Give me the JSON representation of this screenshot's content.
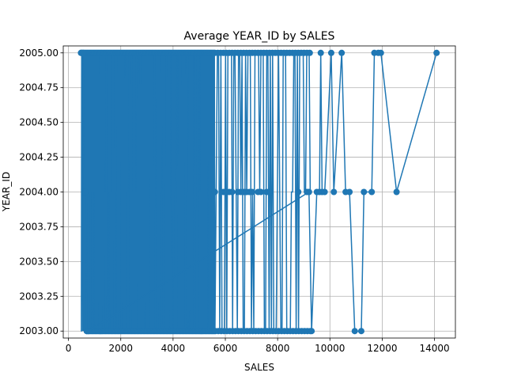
{
  "chart_data": {
    "type": "line",
    "title": "Average YEAR_ID by SALES",
    "xlabel": "SALES",
    "ylabel": "YEAR_ID",
    "xlim": [
      -200,
      14800
    ],
    "ylim": [
      2002.95,
      2005.05
    ],
    "xticks": [
      0,
      2000,
      4000,
      6000,
      8000,
      10000,
      12000,
      14000
    ],
    "xtick_labels": [
      "0",
      "2000",
      "4000",
      "6000",
      "8000",
      "10000",
      "12000",
      "14000"
    ],
    "yticks": [
      2003.0,
      2003.25,
      2003.5,
      2003.75,
      2004.0,
      2004.25,
      2004.5,
      2004.75,
      2005.0
    ],
    "ytick_labels": [
      "2003.00",
      "2003.25",
      "2003.50",
      "2003.75",
      "2004.00",
      "2004.25",
      "2004.50",
      "2004.75",
      "2005.00"
    ],
    "grid": true,
    "marker": "circle",
    "series": [
      {
        "color": "#1f77b4",
        "dense_region": {
          "x_start": 480,
          "x_end": 9300
        },
        "points": [
          [
            482,
            2005.0
          ],
          [
            560,
            2005.0
          ],
          [
            600,
            2004.0
          ],
          [
            640,
            2004.0
          ],
          [
            700,
            2003.0
          ],
          [
            760,
            2003.0
          ],
          [
            9200,
            2004.0
          ],
          [
            9300,
            2003.0
          ],
          [
            9500,
            2004.0
          ],
          [
            9600,
            2004.0
          ],
          [
            9650,
            2005.0
          ],
          [
            9700,
            2004.0
          ],
          [
            9800,
            2004.0
          ],
          [
            10050,
            2005.0
          ],
          [
            10150,
            2004.0
          ],
          [
            10450,
            2005.0
          ],
          [
            10600,
            2004.0
          ],
          [
            10750,
            2004.0
          ],
          [
            10950,
            2003.0
          ],
          [
            11200,
            2003.0
          ],
          [
            11300,
            2004.0
          ],
          [
            11600,
            2004.0
          ],
          [
            11700,
            2005.0
          ],
          [
            11850,
            2005.0
          ],
          [
            11950,
            2005.0
          ],
          [
            12550,
            2004.0
          ],
          [
            14080,
            2005.0
          ]
        ]
      }
    ]
  }
}
